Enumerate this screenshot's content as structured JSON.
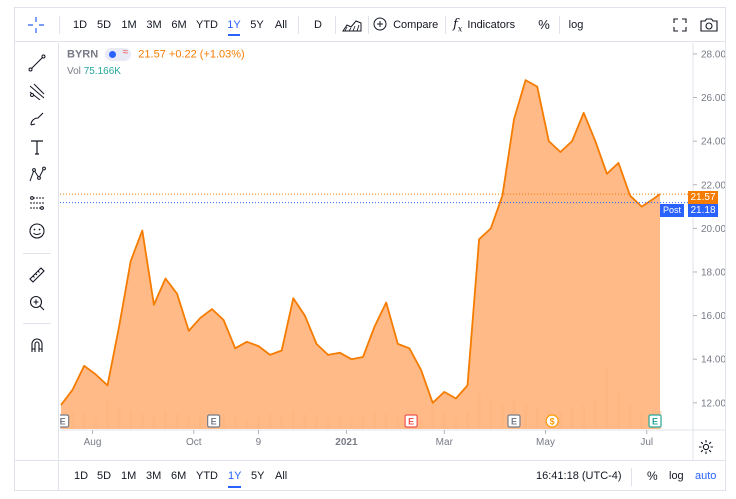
{
  "toolbar": {
    "ranges": [
      "1D",
      "5D",
      "1M",
      "3M",
      "6M",
      "YTD",
      "1Y",
      "5Y",
      "All"
    ],
    "active_range": "1Y",
    "interval": "D",
    "compare_label": "Compare",
    "indicators_label": "Indicators",
    "percent_label": "%",
    "log_label": "log"
  },
  "legend": {
    "symbol": "BYRN",
    "last_price": "21.57",
    "change": "+0.22 (+1.03%)",
    "vol_label": "Vol",
    "vol_value": "75.166K"
  },
  "price_axis": {
    "ticks": [
      "28.00",
      "26.00",
      "24.00",
      "22.00",
      "20.00",
      "18.00",
      "16.00",
      "14.00",
      "12.00"
    ],
    "last_price_badge": "21.57",
    "post_label": "Post",
    "post_price": "21.18"
  },
  "time_axis": {
    "ticks": [
      "Aug",
      "Oct",
      "9",
      "2021",
      "Mar",
      "May",
      "Jul"
    ]
  },
  "events": [
    "E",
    "E",
    "E",
    "E",
    "$",
    "E"
  ],
  "bottom": {
    "ranges": [
      "1D",
      "5D",
      "1M",
      "3M",
      "6M",
      "YTD",
      "1Y",
      "5Y",
      "All"
    ],
    "active_range": "1Y",
    "clock": "16:41:18 (UTC-4)",
    "percent_label": "%",
    "log_label": "log",
    "auto_label": "auto"
  },
  "colors": {
    "line": "#f57c00",
    "area": "#ffb27a",
    "accent": "#2962ff",
    "earnings_red": "#ef5350",
    "dividend_orange": "#ff9800",
    "earnings_green": "#26a69a"
  },
  "chart_data": {
    "type": "area",
    "x": [
      "2020-07-13",
      "2020-07-20",
      "2020-07-27",
      "2020-08-03",
      "2020-08-10",
      "2020-08-17",
      "2020-08-24",
      "2020-08-31",
      "2020-09-07",
      "2020-09-14",
      "2020-09-21",
      "2020-09-28",
      "2020-10-05",
      "2020-10-12",
      "2020-10-19",
      "2020-10-26",
      "2020-11-02",
      "2020-11-09",
      "2020-11-16",
      "2020-11-23",
      "2020-11-30",
      "2020-12-07",
      "2020-12-14",
      "2020-12-21",
      "2020-12-28",
      "2021-01-04",
      "2021-01-11",
      "2021-01-18",
      "2021-01-25",
      "2021-02-01",
      "2021-02-08",
      "2021-02-15",
      "2021-02-22",
      "2021-03-01",
      "2021-03-08",
      "2021-03-15",
      "2021-03-22",
      "2021-03-29",
      "2021-04-05",
      "2021-04-12",
      "2021-04-19",
      "2021-04-26",
      "2021-05-03",
      "2021-05-10",
      "2021-05-17",
      "2021-05-24",
      "2021-05-31",
      "2021-06-07",
      "2021-06-14",
      "2021-06-21",
      "2021-06-28",
      "2021-07-05",
      "2021-07-09"
    ],
    "series": [
      {
        "values": [
          11.9,
          12.6,
          13.7,
          13.3,
          12.8,
          15.5,
          18.5,
          19.9,
          16.5,
          17.7,
          17.0,
          15.3,
          15.9,
          16.3,
          15.8,
          14.5,
          14.8,
          14.6,
          14.2,
          14.4,
          16.8,
          16.0,
          14.7,
          14.2,
          14.3,
          14.0,
          14.1,
          15.5,
          16.6,
          14.7,
          14.5,
          13.5,
          12.0,
          12.5,
          12.2,
          12.8,
          19.5,
          20.0,
          21.5,
          25.0,
          26.8,
          26.5,
          24.0,
          23.5,
          24.0,
          25.3,
          24.0,
          22.5,
          23.0,
          21.5,
          21.0,
          21.35,
          21.57
        ],
        "color": "#f57c00"
      }
    ],
    "ylim": [
      10.8,
      28.5
    ],
    "price_ticks": [
      12,
      14,
      16,
      18,
      20,
      22,
      24,
      26,
      28
    ],
    "last_price": 21.57,
    "post_price": 21.18,
    "grid": false
  }
}
